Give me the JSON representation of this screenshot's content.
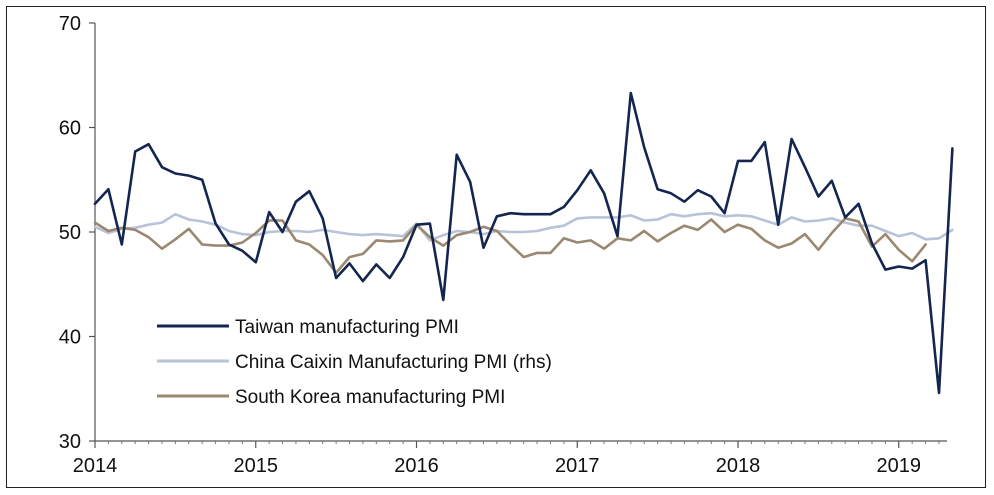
{
  "chart_data": {
    "type": "line",
    "title": "",
    "xlabel": "",
    "ylabel": "",
    "ylim": [
      30,
      70
    ],
    "yticks": [
      30,
      40,
      50,
      60,
      70
    ],
    "xlim": [
      2014,
      2019.3
    ],
    "xticks": [
      "2014",
      "2015",
      "2016",
      "2017",
      "2018",
      "2019"
    ],
    "grid": false,
    "legend_position": "bottom-left",
    "series": [
      {
        "name": "Taiwan manufacturing PMI",
        "color": "#14264f",
        "start_year": 2014,
        "values": [
          52.7,
          54.1,
          48.8,
          57.7,
          58.4,
          56.2,
          55.6,
          55.4,
          55.0,
          50.8,
          48.8,
          48.2,
          47.1,
          51.9,
          50.0,
          52.9,
          53.9,
          51.3,
          45.6,
          47.0,
          45.3,
          46.9,
          45.6,
          47.6,
          50.7,
          50.8,
          43.5,
          57.4,
          54.8,
          48.5,
          51.5,
          51.8,
          51.7,
          51.7,
          51.7,
          52.4,
          54.0,
          55.9,
          53.7,
          49.6,
          63.3,
          58.1,
          54.1,
          53.7,
          52.9,
          54.0,
          53.4,
          51.8,
          56.8,
          56.8,
          58.6,
          50.7,
          58.9,
          56.2,
          53.4,
          54.9,
          51.4,
          52.7,
          48.9,
          46.4,
          46.7,
          46.5,
          47.3,
          34.6,
          58.0
        ]
      },
      {
        "name": "China Caixin Manufacturing PMI (rhs)",
        "color": "#b8c2d9",
        "start_year": 2014,
        "values": [
          50.5,
          49.9,
          50.3,
          50.4,
          50.7,
          50.9,
          51.7,
          51.2,
          51.0,
          50.7,
          50.1,
          49.8,
          49.7,
          50.0,
          50.1,
          50.1,
          50.0,
          50.2,
          50.0,
          49.8,
          49.7,
          49.8,
          49.7,
          49.6,
          50.8,
          49.2,
          49.7,
          50.1,
          50.0,
          49.8,
          50.1,
          50.0,
          50.0,
          50.1,
          50.4,
          50.6,
          51.3,
          51.4,
          51.4,
          51.4,
          51.6,
          51.1,
          51.2,
          51.7,
          51.5,
          51.7,
          51.8,
          51.5,
          51.6,
          51.5,
          51.1,
          50.7,
          51.4,
          51.0,
          51.1,
          51.3,
          50.9,
          50.6,
          50.6,
          50.1,
          49.6,
          49.9,
          49.3,
          49.4,
          50.2
        ]
      },
      {
        "name": "South Korea manufacturing PMI",
        "color": "#9a8870",
        "start_year": 2014,
        "values": [
          50.9,
          50.1,
          50.4,
          50.2,
          49.5,
          48.4,
          49.3,
          50.3,
          48.8,
          48.7,
          48.7,
          49.0,
          49.9,
          51.1,
          51.1,
          49.2,
          48.8,
          47.8,
          46.1,
          47.6,
          47.9,
          49.2,
          49.1,
          49.2,
          50.7,
          49.5,
          48.7,
          49.7,
          50.0,
          50.5,
          50.1,
          48.8,
          47.6,
          48.0,
          48.0,
          49.4,
          49.0,
          49.2,
          48.4,
          49.4,
          49.2,
          50.1,
          49.1,
          49.9,
          50.6,
          50.2,
          51.2,
          50.0,
          50.7,
          50.3,
          49.2,
          48.5,
          48.9,
          49.8,
          48.3,
          49.9,
          51.3,
          51.0,
          48.6,
          49.8,
          48.3,
          47.2,
          48.8
        ]
      }
    ]
  }
}
